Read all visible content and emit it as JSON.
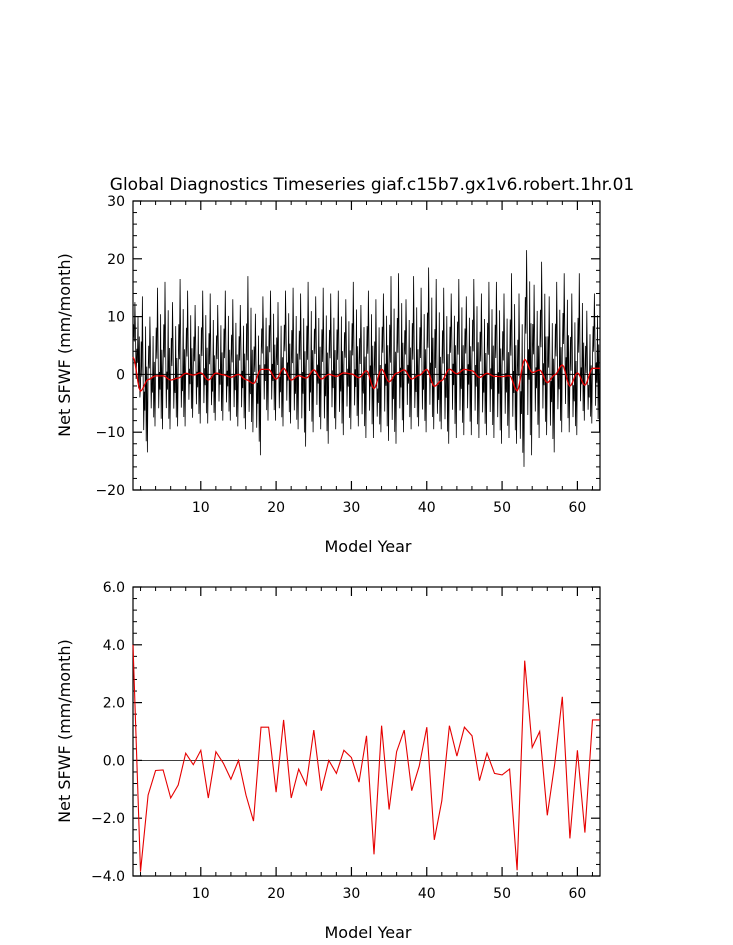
{
  "chart_data": [
    {
      "type": "line",
      "title": "Global Diagnostics Timeseries giaf.c15b7.gx1v6.robert.1hr.01",
      "xlabel": "Model Year",
      "ylabel": "Net SFWF (mm/month)",
      "xlim": [
        1,
        63
      ],
      "ylim": [
        -20,
        30
      ],
      "xticks": [
        10,
        20,
        30,
        40,
        50,
        60
      ],
      "yticks": [
        -20,
        -10,
        0,
        10,
        20,
        30
      ],
      "ytick_labels": [
        "−20",
        "−10",
        "0",
        "10",
        "20",
        "30"
      ],
      "zero_line": true,
      "series": [
        {
          "color": "#000000",
          "annual_max": [
            12.5,
            13.5,
            10.0,
            15.0,
            16.0,
            12.5,
            16.5,
            14.5,
            12.0,
            14.5,
            14.0,
            12.0,
            14.5,
            13.0,
            12.0,
            17.0,
            10.5,
            13.5,
            14.5,
            12.5,
            14.5,
            15.0,
            14.0,
            16.0,
            13.5,
            15.0,
            14.0,
            14.5,
            13.0,
            16.0,
            12.0,
            14.5,
            13.0,
            14.0,
            17.0,
            17.5,
            13.0,
            17.0,
            15.0,
            18.5,
            16.5,
            15.0,
            14.0,
            16.5,
            13.5,
            16.5,
            14.0,
            16.0,
            16.0,
            14.0,
            17.5,
            14.0,
            21.5,
            15.5,
            19.5,
            13.5,
            16.0,
            17.5,
            14.0,
            17.5,
            11.0,
            14.0,
            15.5
          ],
          "annual_min": [
            -4.0,
            -13.5,
            -9.0,
            -9.5,
            -9.5,
            -9.0,
            -9.0,
            -7.5,
            -8.5,
            -8.5,
            -8.0,
            -8.0,
            -8.0,
            -9.0,
            -9.5,
            -10.0,
            -14.0,
            -8.0,
            -8.0,
            -9.0,
            -8.5,
            -9.5,
            -12.5,
            -10.0,
            -9.5,
            -12.0,
            -9.5,
            -10.5,
            -9.5,
            -9.0,
            -11.0,
            -11.0,
            -10.0,
            -11.5,
            -12.0,
            -10.0,
            -9.5,
            -9.0,
            -10.0,
            -9.5,
            -9.5,
            -12.0,
            -11.0,
            -10.5,
            -10.5,
            -11.0,
            -10.5,
            -11.0,
            -12.0,
            -11.0,
            -12.0,
            -16.0,
            -14.0,
            -11.0,
            -10.5,
            -13.5,
            -10.0,
            -10.0,
            -10.5,
            -8.0,
            -8.5,
            -10.0,
            -8.0
          ]
        },
        {
          "color": "#e60000",
          "values_ref": "annual_mean"
        }
      ]
    },
    {
      "type": "line",
      "title": "",
      "xlabel": "Model Year",
      "ylabel": "Net SFWF (mm/month)",
      "xlim": [
        1,
        63
      ],
      "ylim": [
        -4,
        6
      ],
      "xticks": [
        10,
        20,
        30,
        40,
        50,
        60
      ],
      "yticks": [
        -4,
        -2,
        0,
        2,
        4,
        6
      ],
      "ytick_labels": [
        "−4.0",
        "−2.0",
        "0.0",
        "2.0",
        "4.0",
        "6.0"
      ],
      "zero_line": true,
      "series": [
        {
          "color": "#e60000",
          "x": [
            1,
            2,
            3,
            4,
            5,
            6,
            7,
            8,
            9,
            10,
            11,
            12,
            13,
            14,
            15,
            16,
            17,
            18,
            19,
            20,
            21,
            22,
            23,
            24,
            25,
            26,
            27,
            28,
            29,
            30,
            31,
            32,
            33,
            34,
            35,
            36,
            37,
            38,
            39,
            40,
            41,
            42,
            43,
            44,
            45,
            46,
            47,
            48,
            49,
            50,
            51,
            52,
            53,
            54,
            55,
            56,
            57,
            58,
            59,
            60,
            61,
            62,
            63
          ],
          "values": [
            4.0,
            -3.85,
            -1.2,
            -0.35,
            -0.33,
            -1.3,
            -0.85,
            0.25,
            -0.15,
            0.35,
            -1.3,
            0.3,
            -0.1,
            -0.65,
            0.0,
            -1.2,
            -2.1,
            1.15,
            1.15,
            -1.1,
            1.4,
            -1.3,
            -0.3,
            -0.85,
            1.05,
            -1.05,
            0.0,
            -0.45,
            0.35,
            0.1,
            -0.75,
            0.85,
            -3.25,
            1.2,
            -1.7,
            0.3,
            1.05,
            -1.05,
            -0.2,
            1.15,
            -2.75,
            -1.4,
            1.2,
            0.15,
            1.15,
            0.85,
            -0.7,
            0.25,
            -0.45,
            -0.5,
            -0.3,
            -3.8,
            3.45,
            0.45,
            1.0,
            -1.9,
            -0.1,
            2.2,
            -2.7,
            0.35,
            -2.5,
            1.4,
            1.4
          ]
        }
      ]
    }
  ]
}
